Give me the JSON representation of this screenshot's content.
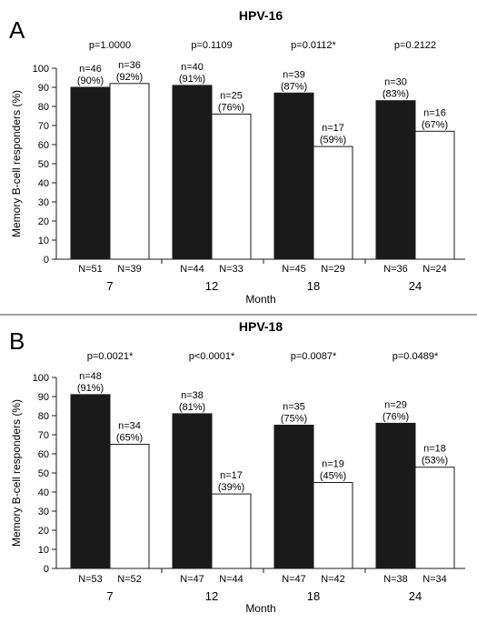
{
  "chart_data": [
    {
      "type": "bar",
      "panel": "A",
      "title": "HPV-16",
      "xlabel": "Month",
      "ylabel": "Memory B-cell responders (%)",
      "ylim": [
        0,
        100
      ],
      "yticks": [
        0,
        10,
        20,
        30,
        40,
        50,
        60,
        70,
        80,
        90,
        100
      ],
      "categories": [
        "7",
        "12",
        "18",
        "24"
      ],
      "p_values": [
        "p=1.0000",
        "p=0.1109",
        "p=0.0112*",
        "p=0.2122"
      ],
      "series": [
        {
          "color": "#1a1a1a",
          "values": [
            90,
            91,
            87,
            83
          ],
          "n_labels": [
            "n=46",
            "n=40",
            "n=39",
            "n=30"
          ],
          "pct_labels": [
            "(90%)",
            "(91%)",
            "(87%)",
            "(83%)"
          ],
          "N_labels": [
            "N=51",
            "N=44",
            "N=45",
            "N=36"
          ]
        },
        {
          "color": "#ffffff",
          "values": [
            92,
            76,
            59,
            67
          ],
          "n_labels": [
            "n=36",
            "n=25",
            "n=17",
            "n=16"
          ],
          "pct_labels": [
            "(92%)",
            "(76%)",
            "(59%)",
            "(67%)"
          ],
          "N_labels": [
            "N=39",
            "N=33",
            "N=29",
            "N=24"
          ]
        }
      ]
    },
    {
      "type": "bar",
      "panel": "B",
      "title": "HPV-18",
      "xlabel": "Month",
      "ylabel": "Memory B-cell responders (%)",
      "ylim": [
        0,
        100
      ],
      "yticks": [
        0,
        10,
        20,
        30,
        40,
        50,
        60,
        70,
        80,
        90,
        100
      ],
      "categories": [
        "7",
        "12",
        "18",
        "24"
      ],
      "p_values": [
        "p=0.0021*",
        "p<0.0001*",
        "p=0.0087*",
        "p=0.0489*"
      ],
      "series": [
        {
          "color": "#1a1a1a",
          "values": [
            91,
            81,
            75,
            76
          ],
          "n_labels": [
            "n=48",
            "n=38",
            "n=35",
            "n=29"
          ],
          "pct_labels": [
            "(91%)",
            "(81%)",
            "(75%)",
            "(76%)"
          ],
          "N_labels": [
            "N=53",
            "N=47",
            "N=47",
            "N=38"
          ]
        },
        {
          "color": "#ffffff",
          "values": [
            65,
            39,
            45,
            53
          ],
          "n_labels": [
            "n=34",
            "n=17",
            "n=19",
            "n=18"
          ],
          "pct_labels": [
            "(65%)",
            "(39%)",
            "(45%)",
            "(53%)"
          ],
          "N_labels": [
            "N=52",
            "N=44",
            "N=42",
            "N=34"
          ]
        }
      ]
    }
  ]
}
